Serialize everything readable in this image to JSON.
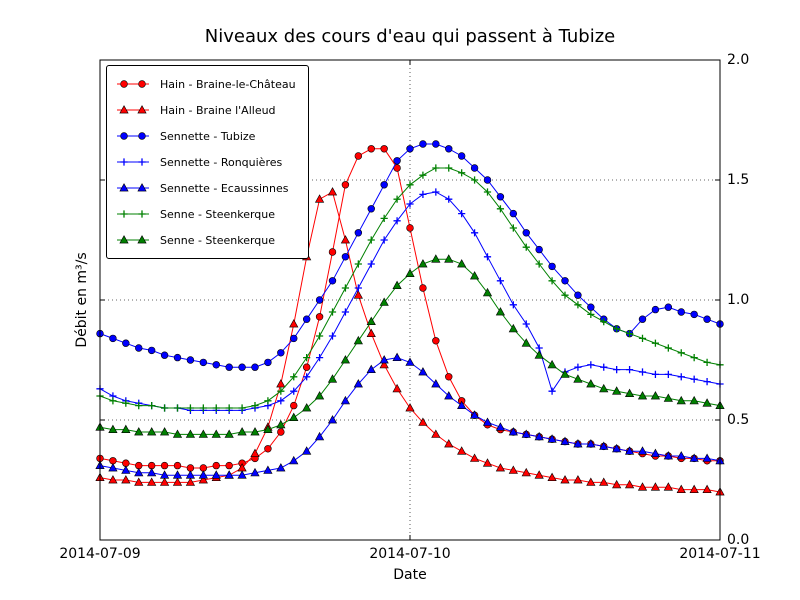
{
  "chart_data": {
    "type": "line",
    "title": "Niveaux des cours d'eau qui passent à Tubize",
    "xlabel": "Date",
    "ylabel": "Débit en m³/s",
    "x_axis": {
      "unit": "hours since 2014-07-09 00:00",
      "lim_hours": [
        0,
        48
      ],
      "tick_hours": [
        0,
        24,
        48
      ],
      "tick_labels": [
        "2014-07-09",
        "2014-07-10",
        "2014-07-11"
      ]
    },
    "y_axis": {
      "lim": [
        0,
        2
      ],
      "ticks": [
        0.0,
        0.5,
        1.0,
        1.5,
        2.0
      ],
      "tick_labels": [
        "0.0",
        "0.5",
        "1.0",
        "1.5",
        "2.0"
      ],
      "labels_side": "right"
    },
    "grid": {
      "style": "dotted",
      "vertical_hours": [
        24
      ],
      "horizontal_values": [
        0.5,
        1.0,
        1.5
      ]
    },
    "legend": {
      "position": "upper left"
    },
    "x_hours": [
      0,
      1,
      2,
      3,
      4,
      5,
      6,
      7,
      8,
      9,
      10,
      11,
      12,
      13,
      14,
      15,
      16,
      17,
      18,
      19,
      20,
      21,
      22,
      23,
      24,
      25,
      26,
      27,
      28,
      29,
      30,
      31,
      32,
      33,
      34,
      35,
      36,
      37,
      38,
      39,
      40,
      41,
      42,
      43,
      44,
      45,
      46,
      47,
      48
    ],
    "series": [
      {
        "name": "Hain - Braine-le-Château",
        "color": "#ff0000",
        "marker": "circle",
        "values": [
          0.34,
          0.33,
          0.32,
          0.31,
          0.31,
          0.31,
          0.31,
          0.3,
          0.3,
          0.31,
          0.31,
          0.32,
          0.34,
          0.38,
          0.45,
          0.56,
          0.72,
          0.93,
          1.2,
          1.48,
          1.6,
          1.63,
          1.63,
          1.55,
          1.3,
          1.05,
          0.83,
          0.68,
          0.58,
          0.52,
          0.48,
          0.46,
          0.45,
          0.44,
          0.43,
          0.42,
          0.41,
          0.4,
          0.4,
          0.39,
          0.38,
          0.37,
          0.36,
          0.35,
          0.35,
          0.34,
          0.34,
          0.33,
          0.33
        ]
      },
      {
        "name": "Hain - Braine l'Alleud",
        "color": "#ff0000",
        "marker": "triangle_up",
        "values": [
          0.26,
          0.25,
          0.25,
          0.24,
          0.24,
          0.24,
          0.24,
          0.24,
          0.25,
          0.26,
          0.27,
          0.3,
          0.36,
          0.47,
          0.65,
          0.9,
          1.18,
          1.42,
          1.45,
          1.25,
          1.02,
          0.86,
          0.73,
          0.63,
          0.55,
          0.49,
          0.44,
          0.4,
          0.37,
          0.34,
          0.32,
          0.3,
          0.29,
          0.28,
          0.27,
          0.26,
          0.25,
          0.25,
          0.24,
          0.24,
          0.23,
          0.23,
          0.22,
          0.22,
          0.22,
          0.21,
          0.21,
          0.21,
          0.2
        ]
      },
      {
        "name": "Sennette - Tubize",
        "color": "#0000ff",
        "marker": "circle",
        "values": [
          0.86,
          0.84,
          0.82,
          0.8,
          0.79,
          0.77,
          0.76,
          0.75,
          0.74,
          0.73,
          0.72,
          0.72,
          0.72,
          0.74,
          0.78,
          0.84,
          0.92,
          1.0,
          1.08,
          1.18,
          1.28,
          1.38,
          1.48,
          1.58,
          1.63,
          1.65,
          1.65,
          1.63,
          1.6,
          1.55,
          1.5,
          1.43,
          1.36,
          1.28,
          1.21,
          1.14,
          1.08,
          1.02,
          0.97,
          0.92,
          0.88,
          0.86,
          0.92,
          0.96,
          0.97,
          0.95,
          0.94,
          0.92,
          0.9
        ]
      },
      {
        "name": "Sennette - Ronquières",
        "color": "#0000ff",
        "marker": "plus",
        "values": [
          0.63,
          0.6,
          0.58,
          0.57,
          0.56,
          0.55,
          0.55,
          0.54,
          0.54,
          0.54,
          0.54,
          0.54,
          0.55,
          0.56,
          0.58,
          0.62,
          0.68,
          0.76,
          0.85,
          0.95,
          1.05,
          1.15,
          1.25,
          1.33,
          1.4,
          1.44,
          1.45,
          1.42,
          1.36,
          1.28,
          1.18,
          1.08,
          0.98,
          0.9,
          0.8,
          0.62,
          0.7,
          0.72,
          0.73,
          0.72,
          0.71,
          0.71,
          0.7,
          0.69,
          0.69,
          0.68,
          0.67,
          0.66,
          0.65
        ]
      },
      {
        "name": "Sennette - Ecaussinnes",
        "color": "#0000ff",
        "marker": "triangle_up",
        "values": [
          0.31,
          0.3,
          0.29,
          0.28,
          0.28,
          0.27,
          0.27,
          0.27,
          0.27,
          0.27,
          0.27,
          0.27,
          0.28,
          0.29,
          0.3,
          0.33,
          0.37,
          0.43,
          0.5,
          0.58,
          0.65,
          0.71,
          0.75,
          0.76,
          0.74,
          0.7,
          0.65,
          0.6,
          0.56,
          0.52,
          0.49,
          0.47,
          0.45,
          0.44,
          0.43,
          0.42,
          0.41,
          0.4,
          0.4,
          0.39,
          0.38,
          0.37,
          0.37,
          0.36,
          0.35,
          0.35,
          0.34,
          0.34,
          0.33
        ]
      },
      {
        "name": "Senne - Steenkerque",
        "color": "#008000",
        "marker": "plus",
        "values": [
          0.6,
          0.58,
          0.57,
          0.56,
          0.56,
          0.55,
          0.55,
          0.55,
          0.55,
          0.55,
          0.55,
          0.55,
          0.56,
          0.58,
          0.62,
          0.68,
          0.76,
          0.85,
          0.95,
          1.05,
          1.15,
          1.25,
          1.34,
          1.42,
          1.48,
          1.52,
          1.55,
          1.55,
          1.53,
          1.5,
          1.45,
          1.38,
          1.3,
          1.22,
          1.15,
          1.08,
          1.02,
          0.98,
          0.94,
          0.91,
          0.88,
          0.86,
          0.84,
          0.82,
          0.8,
          0.78,
          0.76,
          0.74,
          0.73
        ]
      },
      {
        "name": "Senne - Steenkerque",
        "color": "#008000",
        "marker": "triangle_up",
        "values": [
          0.47,
          0.46,
          0.46,
          0.45,
          0.45,
          0.45,
          0.44,
          0.44,
          0.44,
          0.44,
          0.44,
          0.45,
          0.45,
          0.46,
          0.48,
          0.51,
          0.55,
          0.6,
          0.67,
          0.75,
          0.83,
          0.91,
          0.99,
          1.06,
          1.11,
          1.15,
          1.17,
          1.17,
          1.15,
          1.1,
          1.03,
          0.95,
          0.88,
          0.82,
          0.77,
          0.73,
          0.69,
          0.67,
          0.65,
          0.63,
          0.62,
          0.61,
          0.6,
          0.6,
          0.59,
          0.58,
          0.58,
          0.57,
          0.56
        ]
      }
    ]
  }
}
